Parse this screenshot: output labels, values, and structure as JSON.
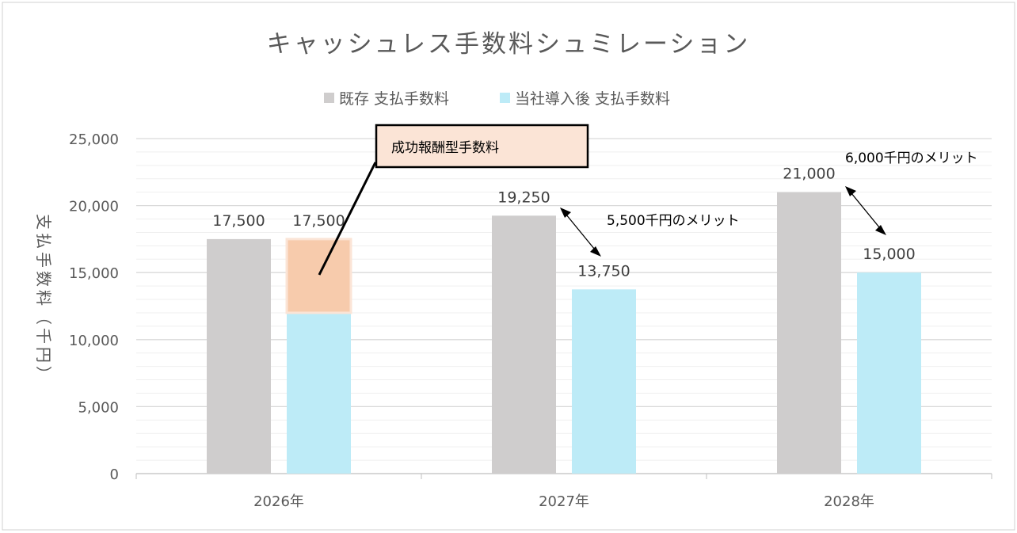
{
  "chart_data": {
    "type": "bar",
    "title": "キャッシュレス手数料シュミレーション",
    "ylabel": "支払手数料（千円）",
    "xlabel": "",
    "categories": [
      "2026年",
      "2027年",
      "2028年"
    ],
    "ylim": [
      0,
      25000
    ],
    "yticks": [
      "0",
      "5,000",
      "10,000",
      "15,000",
      "20,000",
      "25,000"
    ],
    "grid": {
      "major": true,
      "minor": true
    },
    "legend_position": "top",
    "series": [
      {
        "name": "既存 支払手数料",
        "color": "#cfcdcd",
        "values": [
          17500,
          19250,
          21000
        ],
        "labels": [
          "17,500",
          "19,250",
          "21,000"
        ]
      },
      {
        "name": "当社導入後 支払手数料",
        "color": "#bdebf7",
        "values": [
          17500,
          13750,
          15000
        ],
        "labels": [
          "17,500",
          "13,750",
          "15,000"
        ],
        "stack_2026": {
          "base": 12000,
          "success_fee": 5500,
          "success_fee_color": "#f7cbac"
        }
      }
    ],
    "annotations": [
      {
        "text": "成功報酬型手数料",
        "type": "callout"
      },
      {
        "text": "5,500千円のメリット",
        "category": "2027年"
      },
      {
        "text": "6,000千円のメリット",
        "category": "2028年"
      }
    ]
  }
}
